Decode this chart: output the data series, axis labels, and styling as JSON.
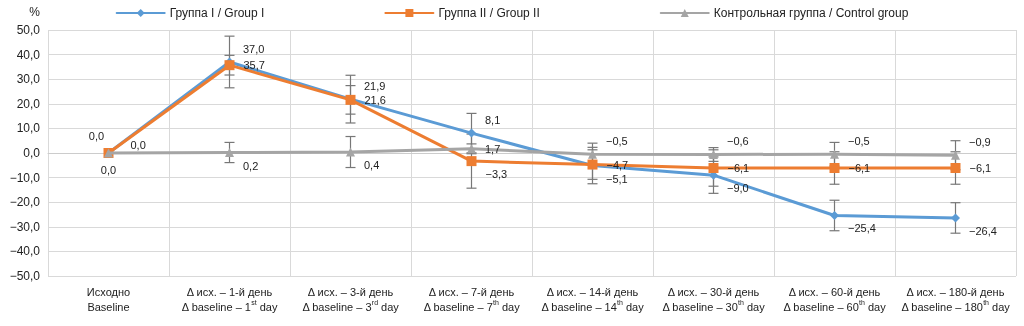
{
  "chart_data": {
    "type": "line",
    "ylabel": "%",
    "categories": [
      "Исходно\nBaseline",
      "Δ исх. – 1-й день\nΔ baseline – 1$^{st}$ day",
      "Δ исх. – 3-й день\nΔ baseline – 3$^{rd}$ day",
      "Δ исх. – 7-й день\nΔ baseline – 7$^{th}$ day",
      "Δ исх. – 14-й день\nΔ baseline – 14$^{th}$ day",
      "Δ исх. – 30-й день\nΔ baseline – 30$^{th}$ day",
      "Δ исх. – 60-й день\nΔ baseline – 60$^{th}$ day",
      "Δ исх. – 180-й день\nΔ baseline – 180$^{th}$ day"
    ],
    "series": [
      {
        "name": "Группа I / Group I",
        "color": "#5b9bd5",
        "marker": "diamond",
        "values": [
          0.0,
          37.0,
          21.9,
          8.1,
          -5.1,
          -9.0,
          -25.4,
          -26.4
        ],
        "value_labels": [
          "0,0",
          "37,0",
          "21,9",
          "8,1",
          "−5,1",
          "−9,0",
          "−25,4",
          "−26,4"
        ],
        "errors": [
          null,
          10.5,
          9.7,
          8,
          7.4,
          7.4,
          6.2,
          6.2
        ]
      },
      {
        "name": "Группа II / Group II",
        "color": "#ed7d31",
        "marker": "square",
        "values": [
          0.0,
          35.7,
          21.6,
          -3.3,
          -4.7,
          -6.1,
          -6.1,
          -6.1
        ],
        "value_labels": [
          "0,0",
          "35,7",
          "21,6",
          "−3,3",
          "−4,7",
          "−6,1",
          "−6,1",
          "−6,1"
        ],
        "errors": [
          null,
          4,
          5.8,
          11,
          6,
          7.4,
          6.6,
          6.6
        ]
      },
      {
        "name": "Контрольная группа / Control group",
        "color": "#a5a5a5",
        "marker": "triangle",
        "values": [
          0.0,
          0.2,
          0.4,
          1.7,
          -0.5,
          -0.6,
          -0.5,
          -0.9
        ],
        "value_labels": [
          "0,0",
          "0,2",
          "0,4",
          "1,7",
          "−0,5",
          "−0,6",
          "−0,5",
          "−0,9"
        ],
        "errors": [
          null,
          4.1,
          6.3,
          2,
          4.5,
          2.8,
          4.8,
          5.9
        ]
      }
    ],
    "ylim": [
      -50,
      50
    ],
    "yticks": [
      {
        "value": -50,
        "label": "−50,0"
      },
      {
        "value": -40,
        "label": "−40,0"
      },
      {
        "value": -30,
        "label": "−30,0"
      },
      {
        "value": -20,
        "label": "−20,0"
      },
      {
        "value": -10,
        "label": "−10,0"
      },
      {
        "value": 0,
        "label": "0,0"
      },
      {
        "value": 10,
        "label": "10,0"
      },
      {
        "value": 20,
        "label": "20,0"
      },
      {
        "value": 30,
        "label": "30,0"
      },
      {
        "value": 40,
        "label": "40,0"
      },
      {
        "value": 50,
        "label": "50,0"
      }
    ],
    "grid": true,
    "legend": "top"
  }
}
